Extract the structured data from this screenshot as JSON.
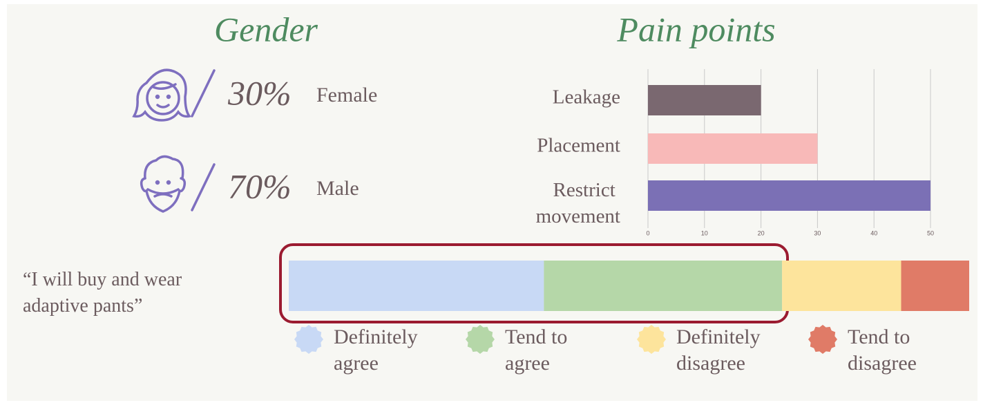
{
  "chart_data": [
    {
      "type": "stat",
      "title": "Gender",
      "categories": [
        "Female",
        "Male"
      ],
      "values": [
        30,
        70
      ],
      "value_labels": [
        "30%",
        "70%"
      ],
      "color": "#4e8b60",
      "icon_color": "#7e6fbf"
    },
    {
      "type": "barh",
      "title": "Pain points",
      "categories": [
        "Leakage",
        "Placement",
        "Restrict movement"
      ],
      "values": [
        20,
        30,
        50
      ],
      "colors": [
        "#7a6870",
        "#f8b9b8",
        "#7b70b5"
      ],
      "xlim": [
        0,
        50
      ],
      "xticks": [
        0,
        10,
        20,
        30,
        40,
        50
      ],
      "grid": true
    },
    {
      "type": "stacked_barh",
      "categories": [
        "“I will buy and wear adaptive pants”"
      ],
      "series": [
        {
          "name": "Definitely agree",
          "color": "#c8d9f5",
          "values": [
            37.5
          ]
        },
        {
          "name": "Tend to agree",
          "color": "#b5d7a8",
          "values": [
            35
          ]
        },
        {
          "name": "Definitely disagree",
          "color": "#fde49c",
          "values": [
            17.5
          ]
        },
        {
          "name": "Tend to disagree",
          "color": "#e07b67",
          "values": [
            10
          ]
        }
      ],
      "xlim": [
        0,
        100
      ]
    }
  ]
}
